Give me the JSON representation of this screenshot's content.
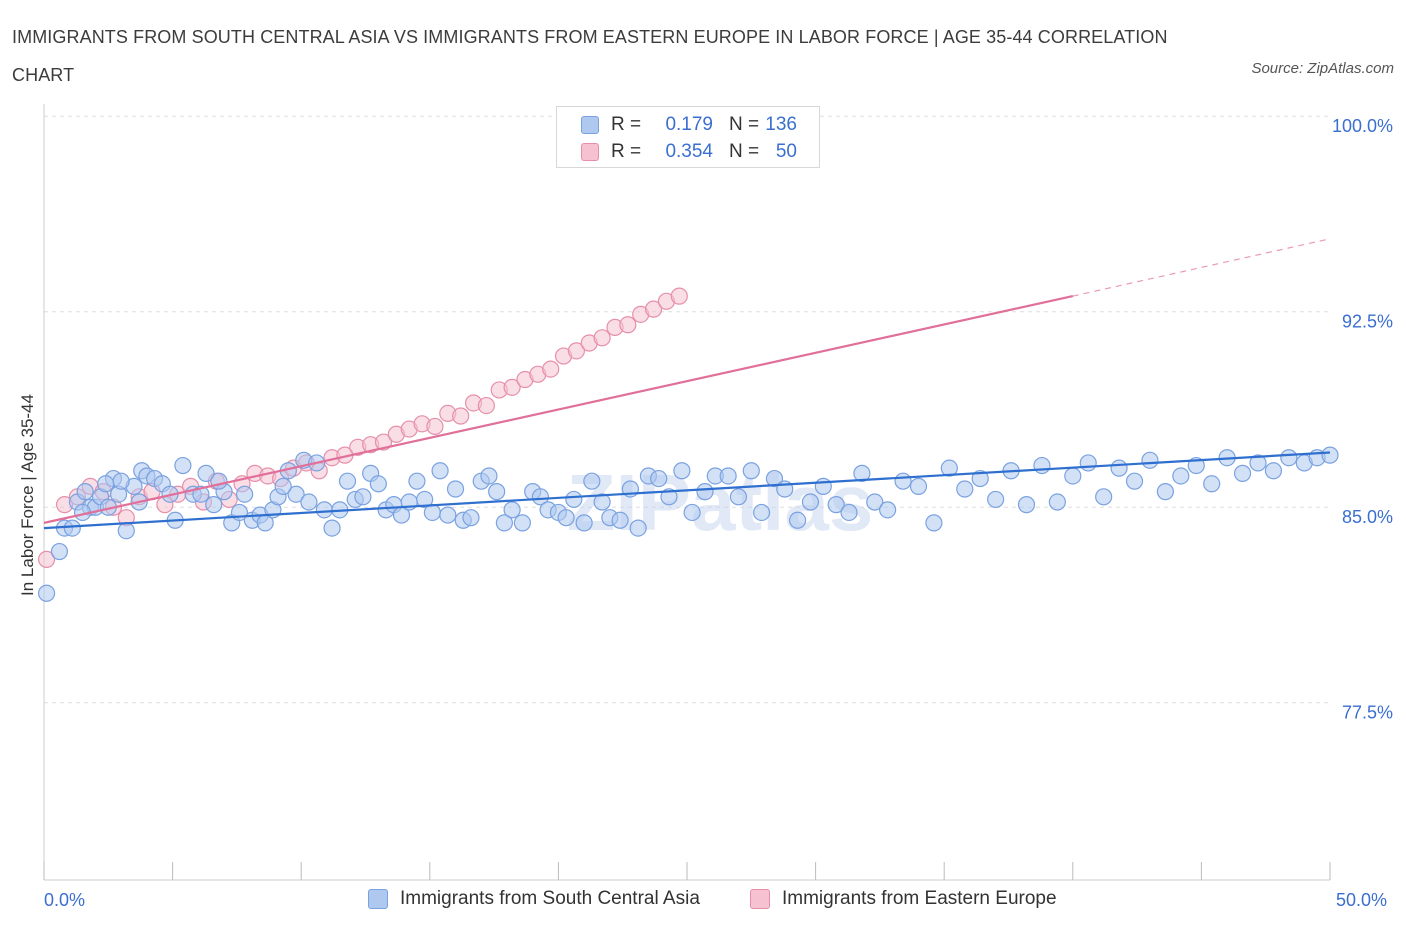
{
  "title": "IMMIGRANTS FROM SOUTH CENTRAL ASIA VS IMMIGRANTS FROM EASTERN EUROPE IN LABOR FORCE | AGE 35-44 CORRELATION CHART",
  "source": "Source: ZipAtlas.com",
  "watermark": "ZIPatlas",
  "colors": {
    "blue_fill": "#aec8f0",
    "blue_stroke": "#7aa2e0",
    "blue_line": "#2e6fcf",
    "pink_fill": "#f6c2d2",
    "pink_stroke": "#e68fab",
    "pink_line": "#e0709a",
    "axis_text": "#3a6fd0",
    "grid": "#dddddd"
  },
  "legend_stats": [
    {
      "r_label": "R =",
      "r_value": "0.179",
      "n_label": "N =",
      "n_value": "136"
    },
    {
      "r_label": "R =",
      "r_value": "0.354",
      "n_label": "N =",
      "n_value": "50"
    }
  ],
  "chart_data": {
    "type": "scatter",
    "title": "IMMIGRANTS FROM SOUTH CENTRAL ASIA VS IMMIGRANTS FROM EASTERN EUROPE IN LABOR FORCE | AGE 35-44 CORRELATION CHART",
    "xlabel": "",
    "ylabel": "In Labor Force | Age 35-44",
    "xlim": [
      0,
      50
    ],
    "ylim": [
      70.7,
      100.7
    ],
    "x_tick_labels": [
      "0.0%",
      "50.0%"
    ],
    "y_ticks": [
      77.5,
      85.0,
      92.5,
      100.0
    ],
    "y_tick_labels": [
      "77.5%",
      "85.0%",
      "92.5%",
      "100.0%"
    ],
    "grid": true,
    "legend_position": "bottom",
    "series": [
      {
        "name": "Immigrants from South Central Asia",
        "color": "#aec8f0",
        "trend": {
          "x": [
            0,
            50
          ],
          "y": [
            84.2,
            87.1
          ]
        },
        "points": [
          [
            0.1,
            81.7
          ],
          [
            0.6,
            83.3
          ],
          [
            0.8,
            84.2
          ],
          [
            1.1,
            84.2
          ],
          [
            1.3,
            85.2
          ],
          [
            1.6,
            85.6
          ],
          [
            1.8,
            85.0
          ],
          [
            2.0,
            85.0
          ],
          [
            2.2,
            85.4
          ],
          [
            2.5,
            85.0
          ],
          [
            2.7,
            86.1
          ],
          [
            2.9,
            85.5
          ],
          [
            3.2,
            84.1
          ],
          [
            3.5,
            85.8
          ],
          [
            3.8,
            86.4
          ],
          [
            4.0,
            86.2
          ],
          [
            4.3,
            86.1
          ],
          [
            4.6,
            85.9
          ],
          [
            4.9,
            85.5
          ],
          [
            5.1,
            84.5
          ],
          [
            5.4,
            86.6
          ],
          [
            5.8,
            85.5
          ],
          [
            6.1,
            85.5
          ],
          [
            6.3,
            86.3
          ],
          [
            6.6,
            85.1
          ],
          [
            7.0,
            85.6
          ],
          [
            7.3,
            84.4
          ],
          [
            7.6,
            84.8
          ],
          [
            7.8,
            85.5
          ],
          [
            8.1,
            84.5
          ],
          [
            8.4,
            84.7
          ],
          [
            8.6,
            84.4
          ],
          [
            8.9,
            84.9
          ],
          [
            9.1,
            85.4
          ],
          [
            9.5,
            86.4
          ],
          [
            9.8,
            85.5
          ],
          [
            10.1,
            86.8
          ],
          [
            10.3,
            85.2
          ],
          [
            10.6,
            86.7
          ],
          [
            10.9,
            84.9
          ],
          [
            11.2,
            84.2
          ],
          [
            11.5,
            84.9
          ],
          [
            11.8,
            86.0
          ],
          [
            12.1,
            85.3
          ],
          [
            12.4,
            85.4
          ],
          [
            12.7,
            86.3
          ],
          [
            13.0,
            85.9
          ],
          [
            13.3,
            84.9
          ],
          [
            13.6,
            85.1
          ],
          [
            13.9,
            84.7
          ],
          [
            14.2,
            85.2
          ],
          [
            14.5,
            86.0
          ],
          [
            14.8,
            85.3
          ],
          [
            15.1,
            84.8
          ],
          [
            15.4,
            86.4
          ],
          [
            15.7,
            84.7
          ],
          [
            16.0,
            85.7
          ],
          [
            16.3,
            84.5
          ],
          [
            16.6,
            84.6
          ],
          [
            17.0,
            86.0
          ],
          [
            17.3,
            86.2
          ],
          [
            17.6,
            85.6
          ],
          [
            17.9,
            84.4
          ],
          [
            18.2,
            84.9
          ],
          [
            18.6,
            84.4
          ],
          [
            19.0,
            85.6
          ],
          [
            19.3,
            85.4
          ],
          [
            19.6,
            84.9
          ],
          [
            20.0,
            84.8
          ],
          [
            20.3,
            84.6
          ],
          [
            20.6,
            85.3
          ],
          [
            21.0,
            84.4
          ],
          [
            21.3,
            86.0
          ],
          [
            21.7,
            85.2
          ],
          [
            22.0,
            84.6
          ],
          [
            22.4,
            84.5
          ],
          [
            22.8,
            85.7
          ],
          [
            23.1,
            84.2
          ],
          [
            23.5,
            86.2
          ],
          [
            23.9,
            86.1
          ],
          [
            24.3,
            85.4
          ],
          [
            24.8,
            86.4
          ],
          [
            25.2,
            84.8
          ],
          [
            25.7,
            85.6
          ],
          [
            26.1,
            86.2
          ],
          [
            26.6,
            86.2
          ],
          [
            27.0,
            85.4
          ],
          [
            27.5,
            86.4
          ],
          [
            27.9,
            84.8
          ],
          [
            28.4,
            86.1
          ],
          [
            28.8,
            85.7
          ],
          [
            29.3,
            84.5
          ],
          [
            29.8,
            85.2
          ],
          [
            30.3,
            85.8
          ],
          [
            30.8,
            85.1
          ],
          [
            31.3,
            84.8
          ],
          [
            31.8,
            86.3
          ],
          [
            32.3,
            85.2
          ],
          [
            32.8,
            84.9
          ],
          [
            33.4,
            86.0
          ],
          [
            34.0,
            85.8
          ],
          [
            34.6,
            84.4
          ],
          [
            35.2,
            86.5
          ],
          [
            35.8,
            85.7
          ],
          [
            36.4,
            86.1
          ],
          [
            37.0,
            85.3
          ],
          [
            37.6,
            86.4
          ],
          [
            38.2,
            85.1
          ],
          [
            38.8,
            86.6
          ],
          [
            39.4,
            85.2
          ],
          [
            40.0,
            86.2
          ],
          [
            40.6,
            86.7
          ],
          [
            41.2,
            85.4
          ],
          [
            41.8,
            86.5
          ],
          [
            42.4,
            86.0
          ],
          [
            43.0,
            86.8
          ],
          [
            43.6,
            85.6
          ],
          [
            44.2,
            86.2
          ],
          [
            44.8,
            86.6
          ],
          [
            45.4,
            85.9
          ],
          [
            46.0,
            86.9
          ],
          [
            46.6,
            86.3
          ],
          [
            47.2,
            86.7
          ],
          [
            47.8,
            86.4
          ],
          [
            48.4,
            86.9
          ],
          [
            49.0,
            86.7
          ],
          [
            49.5,
            86.9
          ],
          [
            50.0,
            87.0
          ],
          [
            1.5,
            84.8
          ],
          [
            2.4,
            85.9
          ],
          [
            3.0,
            86.0
          ],
          [
            3.7,
            85.2
          ],
          [
            6.8,
            86.0
          ],
          [
            9.3,
            85.8
          ]
        ]
      },
      {
        "name": "Immigrants from Eastern Europe",
        "color": "#f6c2d2",
        "trend": {
          "x": [
            0,
            40
          ],
          "y": [
            84.4,
            93.1
          ]
        },
        "trend_dashed": {
          "x": [
            40,
            50
          ],
          "y": [
            93.1,
            95.3
          ]
        },
        "points": [
          [
            0.1,
            83.0
          ],
          [
            0.8,
            85.1
          ],
          [
            1.3,
            85.4
          ],
          [
            1.8,
            85.8
          ],
          [
            2.3,
            85.6
          ],
          [
            2.7,
            85.0
          ],
          [
            3.2,
            84.6
          ],
          [
            3.7,
            85.4
          ],
          [
            4.2,
            85.6
          ],
          [
            4.7,
            85.1
          ],
          [
            5.2,
            85.5
          ],
          [
            5.7,
            85.8
          ],
          [
            6.2,
            85.2
          ],
          [
            6.7,
            86.0
          ],
          [
            7.2,
            85.3
          ],
          [
            7.7,
            85.9
          ],
          [
            8.2,
            86.3
          ],
          [
            8.7,
            86.2
          ],
          [
            9.2,
            86.1
          ],
          [
            9.7,
            86.5
          ],
          [
            10.2,
            86.7
          ],
          [
            10.7,
            86.4
          ],
          [
            11.2,
            86.9
          ],
          [
            11.7,
            87.0
          ],
          [
            12.2,
            87.3
          ],
          [
            12.7,
            87.4
          ],
          [
            13.2,
            87.5
          ],
          [
            13.7,
            87.8
          ],
          [
            14.2,
            88.0
          ],
          [
            14.7,
            88.2
          ],
          [
            15.2,
            88.1
          ],
          [
            15.7,
            88.6
          ],
          [
            16.2,
            88.5
          ],
          [
            16.7,
            89.0
          ],
          [
            17.2,
            88.9
          ],
          [
            17.7,
            89.5
          ],
          [
            18.2,
            89.6
          ],
          [
            18.7,
            89.9
          ],
          [
            19.2,
            90.1
          ],
          [
            19.7,
            90.3
          ],
          [
            20.2,
            90.8
          ],
          [
            20.7,
            91.0
          ],
          [
            21.2,
            91.3
          ],
          [
            21.7,
            91.5
          ],
          [
            22.2,
            91.9
          ],
          [
            22.7,
            92.0
          ],
          [
            23.2,
            92.4
          ],
          [
            23.7,
            92.6
          ],
          [
            24.2,
            92.9
          ],
          [
            24.7,
            93.1
          ]
        ]
      }
    ]
  },
  "bottom_legend": [
    {
      "label": "Immigrants from South Central Asia"
    },
    {
      "label": "Immigrants from Eastern Europe"
    }
  ]
}
